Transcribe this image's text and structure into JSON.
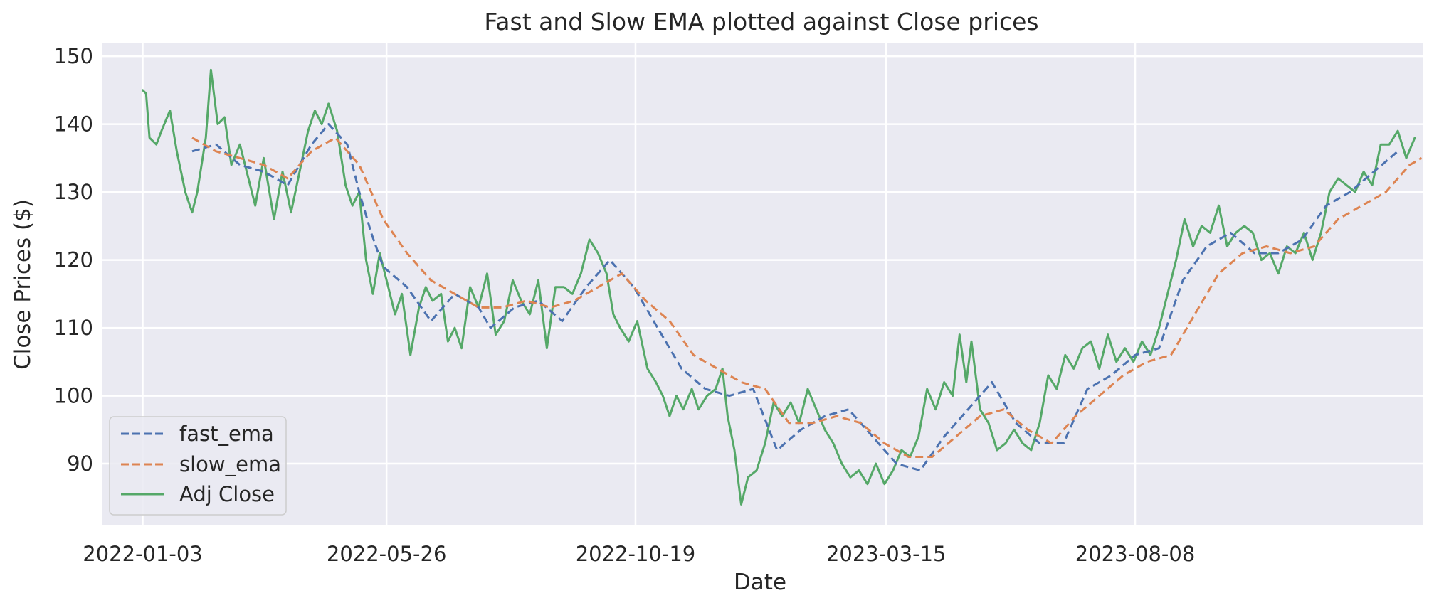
{
  "chart_data": {
    "type": "line",
    "title": "Fast and Slow EMA plotted against Close prices",
    "xlabel": "Date",
    "ylabel": "Close Prices ($)",
    "x_tick_labels": [
      "2022-01-03",
      "2022-05-26",
      "2022-10-19",
      "2023-03-15",
      "2023-08-08"
    ],
    "x_range": [
      "2021-12-10",
      "2024-01-24"
    ],
    "y_ticks": [
      90,
      100,
      110,
      120,
      130,
      140,
      150
    ],
    "ylim": [
      81,
      152
    ],
    "grid": true,
    "legend_position": "lower-left",
    "background": "#eaeaf2",
    "series": [
      {
        "name": "fast_ema",
        "style": "dashed",
        "color": "#4c72b0",
        "points": [
          [
            "2022-02-01",
            136.0
          ],
          [
            "2022-02-15",
            137.0
          ],
          [
            "2022-03-01",
            134.0
          ],
          [
            "2022-03-15",
            133.0
          ],
          [
            "2022-03-29",
            131.0
          ],
          [
            "2022-04-12",
            137.0
          ],
          [
            "2022-04-22",
            140.0
          ],
          [
            "2022-05-03",
            137.0
          ],
          [
            "2022-05-10",
            130.0
          ],
          [
            "2022-05-17",
            124.0
          ],
          [
            "2022-05-24",
            119.0
          ],
          [
            "2022-06-07",
            116.0
          ],
          [
            "2022-06-21",
            111.0
          ],
          [
            "2022-07-05",
            115.0
          ],
          [
            "2022-07-19",
            113.0
          ],
          [
            "2022-07-26",
            110.0
          ],
          [
            "2022-08-09",
            113.0
          ],
          [
            "2022-08-23",
            114.0
          ],
          [
            "2022-09-06",
            111.0
          ],
          [
            "2022-09-20",
            116.0
          ],
          [
            "2022-10-04",
            120.0
          ],
          [
            "2022-10-18",
            116.0
          ],
          [
            "2022-11-01",
            110.0
          ],
          [
            "2022-11-15",
            104.0
          ],
          [
            "2022-11-29",
            101.0
          ],
          [
            "2022-12-13",
            100.0
          ],
          [
            "2022-12-27",
            101.0
          ],
          [
            "2023-01-10",
            92.0
          ],
          [
            "2023-01-24",
            95.0
          ],
          [
            "2023-02-07",
            97.0
          ],
          [
            "2023-02-21",
            98.0
          ],
          [
            "2023-03-07",
            94.0
          ],
          [
            "2023-03-21",
            90.0
          ],
          [
            "2023-04-04",
            89.0
          ],
          [
            "2023-04-18",
            94.0
          ],
          [
            "2023-05-02",
            98.0
          ],
          [
            "2023-05-16",
            102.0
          ],
          [
            "2023-05-30",
            96.0
          ],
          [
            "2023-06-13",
            93.0
          ],
          [
            "2023-06-27",
            93.0
          ],
          [
            "2023-07-11",
            101.0
          ],
          [
            "2023-07-25",
            103.0
          ],
          [
            "2023-08-08",
            106.0
          ],
          [
            "2023-08-22",
            107.0
          ],
          [
            "2023-09-05",
            117.0
          ],
          [
            "2023-09-19",
            122.0
          ],
          [
            "2023-10-03",
            124.0
          ],
          [
            "2023-10-17",
            121.0
          ],
          [
            "2023-10-31",
            121.0
          ],
          [
            "2023-11-14",
            123.0
          ],
          [
            "2023-11-28",
            128.0
          ],
          [
            "2023-12-12",
            130.0
          ],
          [
            "2023-12-26",
            133.0
          ],
          [
            "2024-01-09",
            136.0
          ]
        ]
      },
      {
        "name": "slow_ema",
        "style": "dashed",
        "color": "#dd8452",
        "points": [
          [
            "2022-02-01",
            138.0
          ],
          [
            "2022-02-15",
            136.0
          ],
          [
            "2022-03-01",
            135.0
          ],
          [
            "2022-03-15",
            134.0
          ],
          [
            "2022-03-29",
            132.0
          ],
          [
            "2022-04-12",
            136.0
          ],
          [
            "2022-04-26",
            138.0
          ],
          [
            "2022-05-10",
            134.0
          ],
          [
            "2022-05-24",
            126.0
          ],
          [
            "2022-06-07",
            121.0
          ],
          [
            "2022-06-21",
            117.0
          ],
          [
            "2022-07-05",
            115.0
          ],
          [
            "2022-07-19",
            113.0
          ],
          [
            "2022-08-02",
            113.0
          ],
          [
            "2022-08-16",
            114.0
          ],
          [
            "2022-08-30",
            113.0
          ],
          [
            "2022-09-13",
            114.0
          ],
          [
            "2022-09-27",
            116.0
          ],
          [
            "2022-10-11",
            118.0
          ],
          [
            "2022-10-25",
            114.0
          ],
          [
            "2022-11-08",
            111.0
          ],
          [
            "2022-11-22",
            106.0
          ],
          [
            "2022-12-06",
            104.0
          ],
          [
            "2022-12-20",
            102.0
          ],
          [
            "2023-01-03",
            101.0
          ],
          [
            "2023-01-17",
            96.0
          ],
          [
            "2023-01-31",
            96.0
          ],
          [
            "2023-02-14",
            97.0
          ],
          [
            "2023-02-28",
            96.0
          ],
          [
            "2023-03-14",
            93.0
          ],
          [
            "2023-03-28",
            91.0
          ],
          [
            "2023-04-11",
            91.0
          ],
          [
            "2023-04-25",
            94.0
          ],
          [
            "2023-05-09",
            97.0
          ],
          [
            "2023-05-23",
            98.0
          ],
          [
            "2023-06-06",
            95.0
          ],
          [
            "2023-06-20",
            93.0
          ],
          [
            "2023-07-04",
            97.0
          ],
          [
            "2023-07-18",
            100.0
          ],
          [
            "2023-08-01",
            103.0
          ],
          [
            "2023-08-15",
            105.0
          ],
          [
            "2023-08-29",
            106.0
          ],
          [
            "2023-09-12",
            112.0
          ],
          [
            "2023-09-26",
            118.0
          ],
          [
            "2023-10-10",
            121.0
          ],
          [
            "2023-10-24",
            122.0
          ],
          [
            "2023-11-07",
            121.0
          ],
          [
            "2023-11-21",
            122.0
          ],
          [
            "2023-12-05",
            126.0
          ],
          [
            "2023-12-19",
            128.0
          ],
          [
            "2024-01-02",
            130.0
          ],
          [
            "2024-01-16",
            134.0
          ],
          [
            "2024-01-23",
            135.0
          ]
        ]
      },
      {
        "name": "Adj Close",
        "style": "solid",
        "color": "#55a868",
        "points": [
          [
            "2022-01-03",
            145.0
          ],
          [
            "2022-01-05",
            144.5
          ],
          [
            "2022-01-07",
            138.0
          ],
          [
            "2022-01-11",
            137.0
          ],
          [
            "2022-01-14",
            139.0
          ],
          [
            "2022-01-19",
            142.0
          ],
          [
            "2022-01-23",
            136.0
          ],
          [
            "2022-01-28",
            130.0
          ],
          [
            "2022-02-01",
            127.0
          ],
          [
            "2022-02-04",
            130.0
          ],
          [
            "2022-02-09",
            138.0
          ],
          [
            "2022-02-12",
            148.0
          ],
          [
            "2022-02-16",
            140.0
          ],
          [
            "2022-02-20",
            141.0
          ],
          [
            "2022-02-24",
            134.0
          ],
          [
            "2022-03-01",
            137.0
          ],
          [
            "2022-03-06",
            132.0
          ],
          [
            "2022-03-10",
            128.0
          ],
          [
            "2022-03-15",
            135.0
          ],
          [
            "2022-03-21",
            126.0
          ],
          [
            "2022-03-26",
            133.0
          ],
          [
            "2022-03-31",
            127.0
          ],
          [
            "2022-04-05",
            133.0
          ],
          [
            "2022-04-10",
            139.0
          ],
          [
            "2022-04-14",
            142.0
          ],
          [
            "2022-04-18",
            140.0
          ],
          [
            "2022-04-22",
            143.0
          ],
          [
            "2022-04-27",
            139.0
          ],
          [
            "2022-05-02",
            131.0
          ],
          [
            "2022-05-06",
            128.0
          ],
          [
            "2022-05-10",
            130.0
          ],
          [
            "2022-05-14",
            120.0
          ],
          [
            "2022-05-18",
            115.0
          ],
          [
            "2022-05-22",
            121.0
          ],
          [
            "2022-05-26",
            117.0
          ],
          [
            "2022-05-31",
            112.0
          ],
          [
            "2022-06-04",
            115.0
          ],
          [
            "2022-06-09",
            106.0
          ],
          [
            "2022-06-14",
            113.0
          ],
          [
            "2022-06-18",
            116.0
          ],
          [
            "2022-06-22",
            114.0
          ],
          [
            "2022-06-27",
            115.0
          ],
          [
            "2022-07-01",
            108.0
          ],
          [
            "2022-07-05",
            110.0
          ],
          [
            "2022-07-09",
            107.0
          ],
          [
            "2022-07-14",
            116.0
          ],
          [
            "2022-07-19",
            113.0
          ],
          [
            "2022-07-24",
            118.0
          ],
          [
            "2022-07-29",
            109.0
          ],
          [
            "2022-08-03",
            111.0
          ],
          [
            "2022-08-08",
            117.0
          ],
          [
            "2022-08-13",
            114.0
          ],
          [
            "2022-08-18",
            112.0
          ],
          [
            "2022-08-23",
            117.0
          ],
          [
            "2022-08-28",
            107.0
          ],
          [
            "2022-09-02",
            116.0
          ],
          [
            "2022-09-07",
            116.0
          ],
          [
            "2022-09-12",
            115.0
          ],
          [
            "2022-09-17",
            118.0
          ],
          [
            "2022-09-22",
            123.0
          ],
          [
            "2022-09-27",
            121.0
          ],
          [
            "2022-10-02",
            118.0
          ],
          [
            "2022-10-06",
            112.0
          ],
          [
            "2022-10-10",
            110.0
          ],
          [
            "2022-10-15",
            108.0
          ],
          [
            "2022-10-20",
            111.0
          ],
          [
            "2022-10-26",
            104.0
          ],
          [
            "2022-10-31",
            102.0
          ],
          [
            "2022-11-04",
            100.0
          ],
          [
            "2022-11-08",
            97.0
          ],
          [
            "2022-11-12",
            100.0
          ],
          [
            "2022-11-16",
            98.0
          ],
          [
            "2022-11-21",
            101.0
          ],
          [
            "2022-11-25",
            98.0
          ],
          [
            "2022-11-30",
            100.0
          ],
          [
            "2022-12-05",
            101.0
          ],
          [
            "2022-12-09",
            104.0
          ],
          [
            "2022-12-12",
            97.0
          ],
          [
            "2022-12-16",
            92.0
          ],
          [
            "2022-12-20",
            84.0
          ],
          [
            "2022-12-24",
            88.0
          ],
          [
            "2022-12-29",
            89.0
          ],
          [
            "2023-01-03",
            93.0
          ],
          [
            "2023-01-08",
            99.0
          ],
          [
            "2023-01-13",
            97.0
          ],
          [
            "2023-01-18",
            99.0
          ],
          [
            "2023-01-23",
            96.0
          ],
          [
            "2023-01-28",
            101.0
          ],
          [
            "2023-02-02",
            98.0
          ],
          [
            "2023-02-07",
            95.0
          ],
          [
            "2023-02-12",
            93.0
          ],
          [
            "2023-02-17",
            90.0
          ],
          [
            "2023-02-22",
            88.0
          ],
          [
            "2023-02-27",
            89.0
          ],
          [
            "2023-03-04",
            87.0
          ],
          [
            "2023-03-09",
            90.0
          ],
          [
            "2023-03-14",
            87.0
          ],
          [
            "2023-03-19",
            89.0
          ],
          [
            "2023-03-24",
            92.0
          ],
          [
            "2023-03-29",
            91.0
          ],
          [
            "2023-04-03",
            94.0
          ],
          [
            "2023-04-08",
            101.0
          ],
          [
            "2023-04-13",
            98.0
          ],
          [
            "2023-04-18",
            102.0
          ],
          [
            "2023-04-23",
            100.0
          ],
          [
            "2023-04-27",
            109.0
          ],
          [
            "2023-05-01",
            102.0
          ],
          [
            "2023-05-04",
            108.0
          ],
          [
            "2023-05-09",
            98.0
          ],
          [
            "2023-05-14",
            96.0
          ],
          [
            "2023-05-19",
            92.0
          ],
          [
            "2023-05-24",
            93.0
          ],
          [
            "2023-05-29",
            95.0
          ],
          [
            "2023-06-03",
            93.0
          ],
          [
            "2023-06-08",
            92.0
          ],
          [
            "2023-06-13",
            96.0
          ],
          [
            "2023-06-18",
            103.0
          ],
          [
            "2023-06-23",
            101.0
          ],
          [
            "2023-06-28",
            106.0
          ],
          [
            "2023-07-03",
            104.0
          ],
          [
            "2023-07-08",
            107.0
          ],
          [
            "2023-07-13",
            108.0
          ],
          [
            "2023-07-18",
            104.0
          ],
          [
            "2023-07-23",
            109.0
          ],
          [
            "2023-07-28",
            105.0
          ],
          [
            "2023-08-02",
            107.0
          ],
          [
            "2023-08-07",
            105.0
          ],
          [
            "2023-08-12",
            108.0
          ],
          [
            "2023-08-17",
            106.0
          ],
          [
            "2023-08-22",
            110.0
          ],
          [
            "2023-08-27",
            115.0
          ],
          [
            "2023-09-01",
            120.0
          ],
          [
            "2023-09-06",
            126.0
          ],
          [
            "2023-09-11",
            122.0
          ],
          [
            "2023-09-16",
            125.0
          ],
          [
            "2023-09-21",
            124.0
          ],
          [
            "2023-09-26",
            128.0
          ],
          [
            "2023-10-01",
            122.0
          ],
          [
            "2023-10-06",
            124.0
          ],
          [
            "2023-10-11",
            125.0
          ],
          [
            "2023-10-16",
            124.0
          ],
          [
            "2023-10-21",
            120.0
          ],
          [
            "2023-10-26",
            121.0
          ],
          [
            "2023-10-31",
            118.0
          ],
          [
            "2023-11-05",
            122.0
          ],
          [
            "2023-11-10",
            121.0
          ],
          [
            "2023-11-15",
            124.0
          ],
          [
            "2023-11-20",
            120.0
          ],
          [
            "2023-11-25",
            124.0
          ],
          [
            "2023-11-30",
            130.0
          ],
          [
            "2023-12-05",
            132.0
          ],
          [
            "2023-12-10",
            131.0
          ],
          [
            "2023-12-15",
            130.0
          ],
          [
            "2023-12-20",
            133.0
          ],
          [
            "2023-12-25",
            131.0
          ],
          [
            "2023-12-30",
            137.0
          ],
          [
            "2024-01-04",
            137.0
          ],
          [
            "2024-01-09",
            139.0
          ],
          [
            "2024-01-14",
            135.0
          ],
          [
            "2024-01-19",
            138.0
          ]
        ]
      }
    ]
  }
}
